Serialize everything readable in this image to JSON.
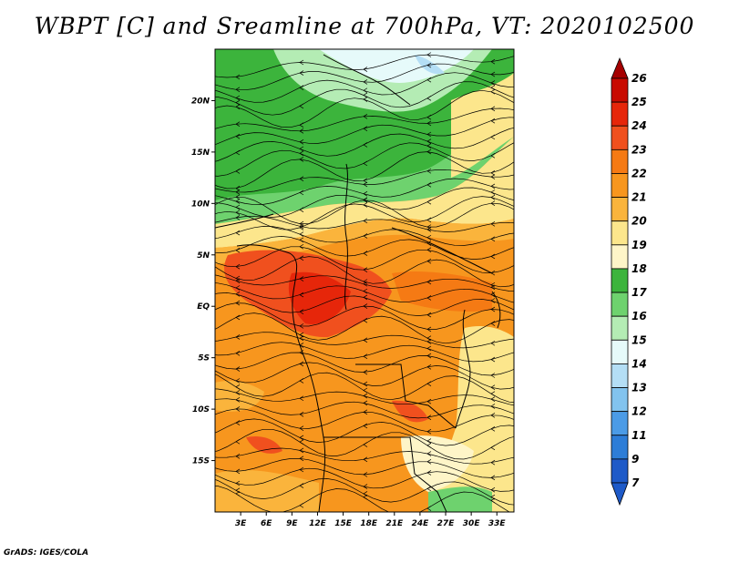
{
  "title": "WBPT [C] and Sreamline at 700hPa, VT: 2020102500",
  "credit": "GrADS: IGES/COLA",
  "map": {
    "lon_range": [
      0,
      35
    ],
    "lat_range": [
      -20,
      25
    ],
    "lat_ticks": [
      {
        "value": 20,
        "label": "20N"
      },
      {
        "value": 15,
        "label": "15N"
      },
      {
        "value": 10,
        "label": "10N"
      },
      {
        "value": 5,
        "label": "5N"
      },
      {
        "value": 0,
        "label": "EQ"
      },
      {
        "value": -5,
        "label": "5S"
      },
      {
        "value": -10,
        "label": "10S"
      },
      {
        "value": -15,
        "label": "15S"
      }
    ],
    "lon_ticks": [
      {
        "value": 3,
        "label": "3E"
      },
      {
        "value": 6,
        "label": "6E"
      },
      {
        "value": 9,
        "label": "9E"
      },
      {
        "value": 12,
        "label": "12E"
      },
      {
        "value": 15,
        "label": "15E"
      },
      {
        "value": 18,
        "label": "18E"
      },
      {
        "value": 21,
        "label": "21E"
      },
      {
        "value": 24,
        "label": "24E"
      },
      {
        "value": 27,
        "label": "27E"
      },
      {
        "value": 30,
        "label": "30E"
      },
      {
        "value": 33,
        "label": "33E"
      }
    ]
  },
  "colorbar": {
    "levels": [
      "26",
      "25",
      "24",
      "23",
      "22",
      "21",
      "20",
      "19",
      "18",
      "17",
      "16",
      "15",
      "14",
      "13",
      "12",
      "11",
      "9",
      "7"
    ],
    "colors": [
      "#a50000",
      "#c80a00",
      "#e6260a",
      "#f0501e",
      "#f57a14",
      "#f7961e",
      "#fab43c",
      "#fce68c",
      "#fef5c8",
      "#3cb43c",
      "#6ed26e",
      "#b4ecb4",
      "#e6fafa",
      "#b4def5",
      "#82c3ee",
      "#4b9be6",
      "#2d7dd7",
      "#1e5ac8"
    ]
  }
}
